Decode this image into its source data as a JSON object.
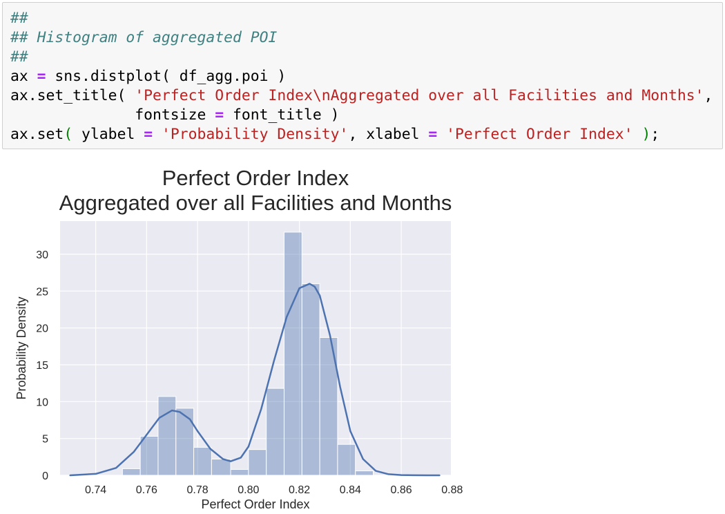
{
  "code": {
    "lines": [
      [
        {
          "t": "cm",
          "v": "##"
        }
      ],
      [
        {
          "t": "cm",
          "v": "## Histogram of aggregated POI"
        }
      ],
      [
        {
          "t": "cm",
          "v": "##"
        }
      ],
      [
        {
          "t": "pn",
          "v": "ax "
        },
        {
          "t": "op",
          "v": "="
        },
        {
          "t": "pn",
          "v": " sns.distplot( df_agg.poi )"
        }
      ],
      [
        {
          "t": "pn",
          "v": "ax.set_title( "
        },
        {
          "t": "st",
          "v": "'Perfect Order Index\\nAggregated over all Facilities and Months'"
        },
        {
          "t": "pn",
          "v": ","
        }
      ],
      [
        {
          "t": "pn",
          "v": "              fontsize "
        },
        {
          "t": "op",
          "v": "="
        },
        {
          "t": "pn",
          "v": " font_title )"
        }
      ],
      [
        {
          "t": "pn",
          "v": "ax.set"
        },
        {
          "t": "pg",
          "v": "("
        },
        {
          "t": "pn",
          "v": " ylabel "
        },
        {
          "t": "op",
          "v": "="
        },
        {
          "t": "pn",
          "v": " "
        },
        {
          "t": "st",
          "v": "'Probability Density'"
        },
        {
          "t": "pn",
          "v": ", xlabel "
        },
        {
          "t": "op",
          "v": "="
        },
        {
          "t": "pn",
          "v": " "
        },
        {
          "t": "st",
          "v": "'Perfect Order Index'"
        },
        {
          "t": "pn",
          "v": " "
        },
        {
          "t": "pg",
          "v": ")"
        },
        {
          "t": "pn",
          "v": ";"
        }
      ]
    ]
  },
  "chart_data": {
    "type": "bar",
    "title_lines": [
      "Perfect Order Index",
      "Aggregated over all Facilities and Months"
    ],
    "xlabel": "Perfect Order Index",
    "ylabel": "Probability Density",
    "xlim": [
      0.726,
      0.8795
    ],
    "ylim": [
      0,
      34.5
    ],
    "xticks": [
      0.74,
      0.76,
      0.78,
      0.8,
      0.82,
      0.84,
      0.86,
      0.88
    ],
    "xtick_labels": [
      "0.74",
      "0.76",
      "0.78",
      "0.80",
      "0.82",
      "0.84",
      "0.86",
      "0.88"
    ],
    "yticks": [
      0,
      5,
      10,
      15,
      20,
      25,
      30
    ],
    "ytick_labels": [
      "0",
      "5",
      "10",
      "15",
      "20",
      "25",
      "30"
    ],
    "grid": true,
    "bars": [
      {
        "x0": 0.7505,
        "x1": 0.7575,
        "y": 0.9
      },
      {
        "x0": 0.7575,
        "x1": 0.7645,
        "y": 5.3
      },
      {
        "x0": 0.7645,
        "x1": 0.7715,
        "y": 10.7
      },
      {
        "x0": 0.7715,
        "x1": 0.7785,
        "y": 9.1
      },
      {
        "x0": 0.7785,
        "x1": 0.7855,
        "y": 3.8
      },
      {
        "x0": 0.7855,
        "x1": 0.793,
        "y": 2.2
      },
      {
        "x0": 0.793,
        "x1": 0.8,
        "y": 0.8
      },
      {
        "x0": 0.8,
        "x1": 0.807,
        "y": 3.5
      },
      {
        "x0": 0.807,
        "x1": 0.814,
        "y": 11.8
      },
      {
        "x0": 0.814,
        "x1": 0.821,
        "y": 33.0
      },
      {
        "x0": 0.821,
        "x1": 0.828,
        "y": 26.0
      },
      {
        "x0": 0.828,
        "x1": 0.835,
        "y": 18.7
      },
      {
        "x0": 0.835,
        "x1": 0.842,
        "y": 4.2
      },
      {
        "x0": 0.842,
        "x1": 0.849,
        "y": 0.6
      }
    ],
    "kde": {
      "x": [
        0.73,
        0.74,
        0.748,
        0.755,
        0.76,
        0.765,
        0.77,
        0.773,
        0.777,
        0.78,
        0.785,
        0.79,
        0.793,
        0.797,
        0.8,
        0.805,
        0.81,
        0.815,
        0.82,
        0.824,
        0.826,
        0.828,
        0.832,
        0.836,
        0.84,
        0.845,
        0.85,
        0.855,
        0.86,
        0.865,
        0.87,
        0.875
      ],
      "y": [
        0.0,
        0.2,
        1.0,
        3.2,
        5.5,
        7.8,
        8.8,
        8.6,
        7.6,
        6.0,
        3.6,
        2.2,
        1.9,
        2.4,
        3.9,
        9.0,
        15.5,
        21.5,
        25.4,
        26.0,
        25.6,
        24.4,
        19.0,
        12.0,
        6.0,
        2.2,
        0.6,
        0.15,
        0.04,
        0.01,
        0.0,
        0.0
      ]
    },
    "colors": {
      "background": "#eaeaf2",
      "grid": "#ffffff",
      "bar": "#4c72b0",
      "kde": "#4c72b0",
      "text": "#262626"
    }
  }
}
